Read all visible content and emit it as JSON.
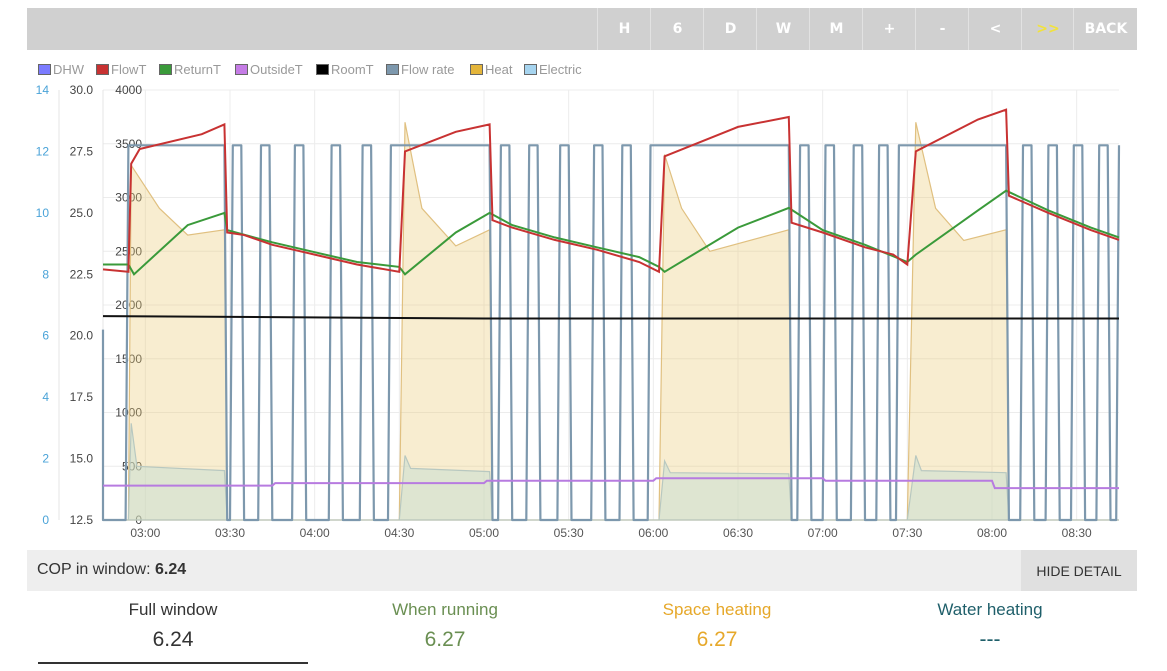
{
  "toolbar": {
    "buttons": [
      {
        "label": "H"
      },
      {
        "label": "6"
      },
      {
        "label": "D"
      },
      {
        "label": "W"
      },
      {
        "label": "M"
      },
      {
        "label": "+"
      },
      {
        "label": "-"
      },
      {
        "label": "<"
      },
      {
        "label": ">>"
      },
      {
        "label": "BACK"
      }
    ]
  },
  "legend": [
    {
      "label": "DHW",
      "color": "#7b7bff"
    },
    {
      "label": "FlowT",
      "color": "#c83232"
    },
    {
      "label": "ReturnT",
      "color": "#3a9a3a"
    },
    {
      "label": "OutsideT",
      "color": "#c57ce6"
    },
    {
      "label": "RoomT",
      "color": "#000000"
    },
    {
      "label": "Flow rate",
      "color": "#7d98ad"
    },
    {
      "label": "Heat",
      "color": "#e4b53a"
    },
    {
      "label": "Electric",
      "color": "#a6d4ef"
    }
  ],
  "chart_data": {
    "type": "line",
    "x_ticks": [
      "03:00",
      "03:30",
      "04:00",
      "04:30",
      "05:00",
      "05:30",
      "06:00",
      "06:30",
      "07:00",
      "07:30",
      "08:00",
      "08:30"
    ],
    "x_range": [
      "02:45",
      "08:45"
    ],
    "y_axes": [
      {
        "ticks": [
          "0",
          "2",
          "4",
          "6",
          "8",
          "10",
          "12",
          "14"
        ],
        "range": [
          0,
          14
        ],
        "color": "#4aa3d8"
      },
      {
        "ticks": [
          "12.5",
          "15.0",
          "17.5",
          "20.0",
          "22.5",
          "25.0",
          "27.5",
          "30.0"
        ],
        "range": [
          12.5,
          30
        ],
        "color": "#444444"
      },
      {
        "ticks": [
          "0",
          "500",
          "1000",
          "1500",
          "2000",
          "2500",
          "3000",
          "3500",
          "4000"
        ],
        "range": [
          0,
          4000
        ],
        "color": "#444444"
      }
    ],
    "grid": true,
    "legend_position": "top-left",
    "series": [
      {
        "name": "FlowT",
        "axis": "temp",
        "points": [
          [
            "02:45",
            22.7
          ],
          [
            "02:54",
            22.6
          ],
          [
            "02:55",
            27.0
          ],
          [
            "02:58",
            27.6
          ],
          [
            "03:20",
            28.2
          ],
          [
            "03:28",
            28.6
          ],
          [
            "03:29",
            24.2
          ],
          [
            "03:35",
            24.1
          ],
          [
            "03:45",
            23.7
          ],
          [
            "04:00",
            23.3
          ],
          [
            "04:15",
            22.9
          ],
          [
            "04:30",
            22.6
          ],
          [
            "04:32",
            27.5
          ],
          [
            "04:50",
            28.3
          ],
          [
            "05:02",
            28.6
          ],
          [
            "05:03",
            24.7
          ],
          [
            "05:10",
            24.4
          ],
          [
            "05:25",
            23.9
          ],
          [
            "05:40",
            23.5
          ],
          [
            "05:55",
            23.0
          ],
          [
            "06:02",
            22.6
          ],
          [
            "06:04",
            27.3
          ],
          [
            "06:30",
            28.5
          ],
          [
            "06:48",
            28.9
          ],
          [
            "06:49",
            24.6
          ],
          [
            "07:00",
            24.2
          ],
          [
            "07:15",
            23.6
          ],
          [
            "07:25",
            23.3
          ],
          [
            "07:30",
            22.9
          ],
          [
            "07:33",
            27.5
          ],
          [
            "07:55",
            28.8
          ],
          [
            "08:05",
            29.2
          ],
          [
            "08:06",
            25.7
          ],
          [
            "08:20",
            25.0
          ],
          [
            "08:35",
            24.3
          ],
          [
            "08:45",
            23.9
          ]
        ]
      },
      {
        "name": "ReturnT",
        "axis": "temp",
        "points": [
          [
            "02:45",
            22.9
          ],
          [
            "02:54",
            22.9
          ],
          [
            "02:56",
            22.5
          ],
          [
            "03:15",
            24.5
          ],
          [
            "03:28",
            25.0
          ],
          [
            "03:29",
            24.3
          ],
          [
            "03:45",
            23.8
          ],
          [
            "04:00",
            23.4
          ],
          [
            "04:15",
            23.0
          ],
          [
            "04:30",
            22.8
          ],
          [
            "04:32",
            22.5
          ],
          [
            "04:50",
            24.2
          ],
          [
            "05:02",
            25.0
          ],
          [
            "05:10",
            24.5
          ],
          [
            "05:25",
            24.0
          ],
          [
            "05:40",
            23.6
          ],
          [
            "05:55",
            23.2
          ],
          [
            "06:02",
            22.8
          ],
          [
            "06:04",
            22.6
          ],
          [
            "06:30",
            24.4
          ],
          [
            "06:48",
            25.2
          ],
          [
            "07:00",
            24.3
          ],
          [
            "07:15",
            23.7
          ],
          [
            "07:30",
            23.0
          ],
          [
            "07:33",
            23.3
          ],
          [
            "07:55",
            25.1
          ],
          [
            "08:05",
            25.9
          ],
          [
            "08:20",
            25.1
          ],
          [
            "08:35",
            24.4
          ],
          [
            "08:45",
            24.0
          ]
        ]
      },
      {
        "name": "RoomT",
        "axis": "temp",
        "points": [
          [
            "02:45",
            20.8
          ],
          [
            "05:00",
            20.7
          ],
          [
            "06:00",
            20.7
          ],
          [
            "07:30",
            20.7
          ],
          [
            "08:45",
            20.7
          ]
        ]
      },
      {
        "name": "OutsideT",
        "axis": "temp",
        "points": [
          [
            "02:45",
            13.9
          ],
          [
            "03:45",
            13.9
          ],
          [
            "03:46",
            14.0
          ],
          [
            "05:00",
            14.0
          ],
          [
            "05:01",
            14.1
          ],
          [
            "06:00",
            14.1
          ],
          [
            "06:01",
            14.2
          ],
          [
            "07:00",
            14.2
          ],
          [
            "07:01",
            14.1
          ],
          [
            "08:00",
            14.1
          ],
          [
            "08:01",
            13.8
          ],
          [
            "08:45",
            13.8
          ]
        ]
      },
      {
        "name": "Heat",
        "axis": "power",
        "points": [
          [
            "02:45",
            0
          ],
          [
            "02:54",
            0
          ],
          [
            "02:55",
            3300
          ],
          [
            "03:00",
            3100
          ],
          [
            "03:05",
            2900
          ],
          [
            "03:15",
            2650
          ],
          [
            "03:28",
            2700
          ],
          [
            "03:29",
            0
          ],
          [
            "04:30",
            0
          ],
          [
            "04:32",
            3700
          ],
          [
            "04:38",
            2900
          ],
          [
            "04:50",
            2550
          ],
          [
            "05:02",
            2700
          ],
          [
            "05:03",
            0
          ],
          [
            "06:02",
            0
          ],
          [
            "06:04",
            3400
          ],
          [
            "06:10",
            2900
          ],
          [
            "06:20",
            2500
          ],
          [
            "06:48",
            2700
          ],
          [
            "06:49",
            0
          ],
          [
            "07:30",
            0
          ],
          [
            "07:33",
            3700
          ],
          [
            "07:40",
            2900
          ],
          [
            "07:50",
            2600
          ],
          [
            "08:05",
            2700
          ],
          [
            "08:06",
            0
          ],
          [
            "08:45",
            0
          ]
        ]
      },
      {
        "name": "Electric",
        "axis": "power",
        "points": [
          [
            "02:45",
            0
          ],
          [
            "02:54",
            0
          ],
          [
            "02:55",
            900
          ],
          [
            "02:57",
            500
          ],
          [
            "03:28",
            460
          ],
          [
            "03:29",
            0
          ],
          [
            "04:30",
            0
          ],
          [
            "04:32",
            600
          ],
          [
            "04:34",
            480
          ],
          [
            "05:02",
            450
          ],
          [
            "05:03",
            0
          ],
          [
            "06:02",
            0
          ],
          [
            "06:04",
            550
          ],
          [
            "06:06",
            440
          ],
          [
            "06:48",
            430
          ],
          [
            "06:49",
            0
          ],
          [
            "07:30",
            0
          ],
          [
            "07:33",
            600
          ],
          [
            "07:35",
            460
          ],
          [
            "08:05",
            440
          ],
          [
            "08:06",
            0
          ],
          [
            "08:45",
            0
          ]
        ]
      },
      {
        "name": "Flow rate",
        "axis": "flow",
        "points": [
          [
            "02:45",
            6.2
          ],
          [
            "02:45",
            0
          ],
          [
            "02:53",
            0
          ],
          [
            "02:54",
            12.2
          ],
          [
            "03:28",
            12.2
          ],
          [
            "03:29",
            0
          ],
          [
            "03:30",
            0
          ],
          [
            "03:31",
            12.2
          ],
          [
            "03:34",
            12.2
          ],
          [
            "03:35",
            0
          ],
          [
            "03:40",
            0
          ],
          [
            "03:41",
            12.2
          ],
          [
            "03:44",
            12.2
          ],
          [
            "03:45",
            0
          ],
          [
            "03:52",
            0
          ],
          [
            "03:53",
            12.2
          ],
          [
            "03:56",
            12.2
          ],
          [
            "03:57",
            0
          ],
          [
            "04:05",
            0
          ],
          [
            "04:06",
            12.2
          ],
          [
            "04:09",
            12.2
          ],
          [
            "04:10",
            0
          ],
          [
            "04:16",
            0
          ],
          [
            "04:17",
            12.2
          ],
          [
            "04:20",
            12.2
          ],
          [
            "04:21",
            0
          ],
          [
            "04:26",
            0
          ],
          [
            "04:27",
            12.2
          ],
          [
            "04:30",
            12.2
          ],
          [
            "04:31",
            12.2
          ],
          [
            "05:02",
            12.2
          ],
          [
            "05:03",
            0
          ],
          [
            "05:05",
            0
          ],
          [
            "05:06",
            12.2
          ],
          [
            "05:09",
            12.2
          ],
          [
            "05:10",
            0
          ],
          [
            "05:15",
            0
          ],
          [
            "05:16",
            12.2
          ],
          [
            "05:19",
            12.2
          ],
          [
            "05:20",
            0
          ],
          [
            "05:26",
            0
          ],
          [
            "05:27",
            12.2
          ],
          [
            "05:30",
            12.2
          ],
          [
            "05:31",
            0
          ],
          [
            "05:38",
            0
          ],
          [
            "05:39",
            12.2
          ],
          [
            "05:42",
            12.2
          ],
          [
            "05:43",
            0
          ],
          [
            "05:48",
            0
          ],
          [
            "05:49",
            12.2
          ],
          [
            "05:52",
            12.2
          ],
          [
            "05:53",
            0
          ],
          [
            "05:58",
            0
          ],
          [
            "05:59",
            12.2
          ],
          [
            "06:48",
            12.2
          ],
          [
            "06:49",
            0
          ],
          [
            "06:51",
            0
          ],
          [
            "06:52",
            12.2
          ],
          [
            "06:55",
            12.2
          ],
          [
            "06:56",
            0
          ],
          [
            "07:00",
            0
          ],
          [
            "07:01",
            12.2
          ],
          [
            "07:04",
            12.2
          ],
          [
            "07:05",
            0
          ],
          [
            "07:10",
            0
          ],
          [
            "07:11",
            12.2
          ],
          [
            "07:14",
            12.2
          ],
          [
            "07:15",
            0
          ],
          [
            "07:19",
            0
          ],
          [
            "07:20",
            12.2
          ],
          [
            "07:23",
            12.2
          ],
          [
            "07:24",
            0
          ],
          [
            "07:26",
            0
          ],
          [
            "07:27",
            12.2
          ],
          [
            "08:05",
            12.2
          ],
          [
            "08:06",
            0
          ],
          [
            "08:10",
            0
          ],
          [
            "08:11",
            12.2
          ],
          [
            "08:14",
            12.2
          ],
          [
            "08:15",
            0
          ],
          [
            "08:19",
            0
          ],
          [
            "08:20",
            12.2
          ],
          [
            "08:23",
            12.2
          ],
          [
            "08:24",
            0
          ],
          [
            "08:28",
            0
          ],
          [
            "08:29",
            12.2
          ],
          [
            "08:32",
            12.2
          ],
          [
            "08:33",
            0
          ],
          [
            "08:37",
            0
          ],
          [
            "08:38",
            12.2
          ],
          [
            "08:41",
            12.2
          ],
          [
            "08:42",
            0
          ],
          [
            "08:44",
            0
          ],
          [
            "08:45",
            12.2
          ]
        ]
      }
    ]
  },
  "cop_window": {
    "label": "COP in window:",
    "value": "6.24"
  },
  "hide_detail_label": "HIDE DETAIL",
  "stats": [
    {
      "title": "Full window",
      "value": "6.24",
      "color": "#333333"
    },
    {
      "title": "When running",
      "value": "6.27",
      "color": "#6a8f52"
    },
    {
      "title": "Space heating",
      "value": "6.27",
      "color": "#e6a82a"
    },
    {
      "title": "Water heating",
      "value": "---",
      "color": "#1f5f6a"
    }
  ]
}
